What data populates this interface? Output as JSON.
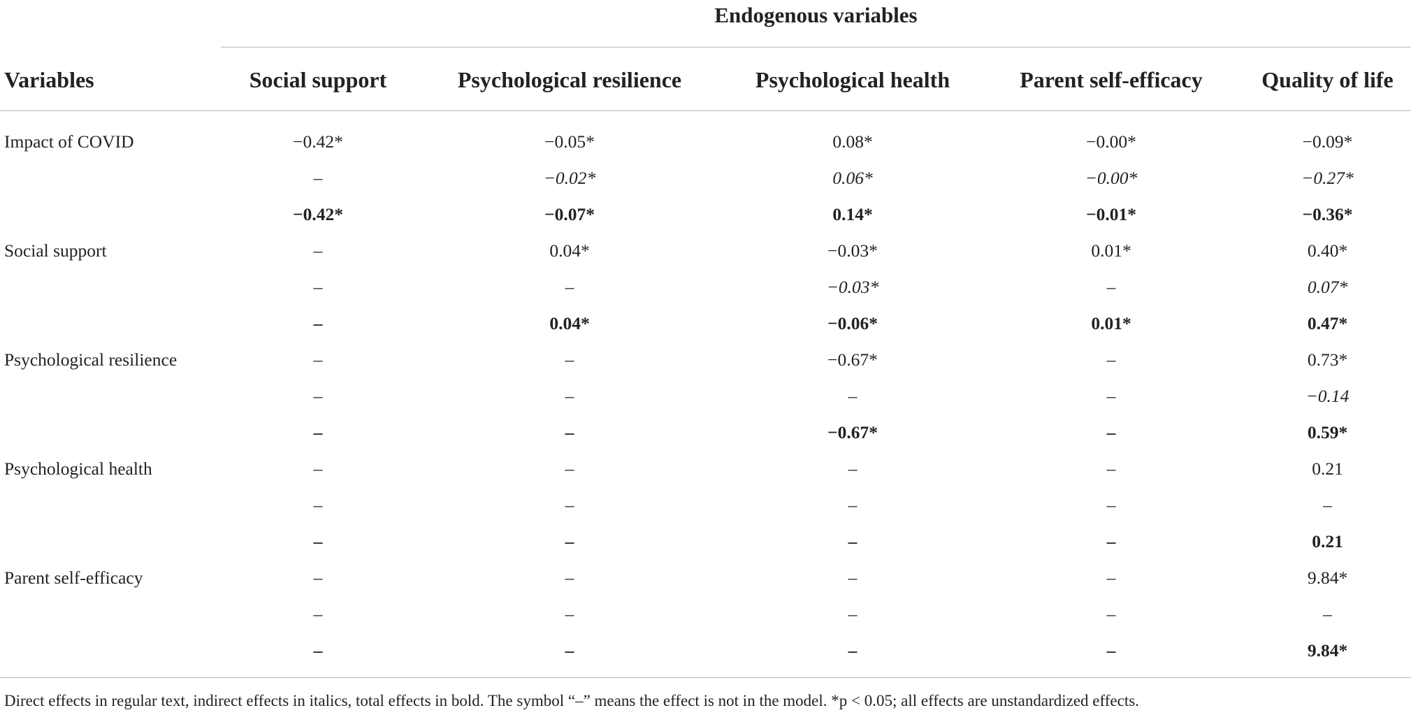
{
  "table": {
    "group_header": "Endogenous variables",
    "variables_header": "Variables",
    "columns": [
      "Social support",
      "Psychological resilience",
      "Psychological health",
      "Parent self-efficacy",
      "Quality of life"
    ],
    "rows": [
      {
        "label": "Impact of COVID",
        "type": "direct",
        "values": [
          "−0.42*",
          "−0.05*",
          "0.08*",
          "−0.00*",
          "−0.09*"
        ]
      },
      {
        "label": "",
        "type": "indirect",
        "values": [
          "–",
          "−0.02*",
          "0.06*",
          "−0.00*",
          "−0.27*"
        ]
      },
      {
        "label": "",
        "type": "total",
        "values": [
          "−0.42*",
          "−0.07*",
          "0.14*",
          "−0.01*",
          "−0.36*"
        ]
      },
      {
        "label": "Social support",
        "type": "direct",
        "values": [
          "–",
          "0.04*",
          "−0.03*",
          "0.01*",
          "0.40*"
        ]
      },
      {
        "label": "",
        "type": "indirect",
        "values": [
          "–",
          "–",
          "−0.03*",
          "–",
          "0.07*"
        ]
      },
      {
        "label": "",
        "type": "total",
        "values": [
          "–",
          "0.04*",
          "−0.06*",
          "0.01*",
          "0.47*"
        ]
      },
      {
        "label": "Psychological resilience",
        "type": "direct",
        "values": [
          "–",
          "–",
          "−0.67*",
          "–",
          "0.73*"
        ]
      },
      {
        "label": "",
        "type": "indirect",
        "values": [
          "–",
          "–",
          "–",
          "–",
          "−0.14"
        ]
      },
      {
        "label": "",
        "type": "total",
        "values": [
          "–",
          "–",
          "−0.67*",
          "–",
          "0.59*"
        ]
      },
      {
        "label": "Psychological health",
        "type": "direct",
        "values": [
          "–",
          "–",
          "–",
          "–",
          "0.21"
        ]
      },
      {
        "label": "",
        "type": "indirect",
        "values": [
          "–",
          "–",
          "–",
          "–",
          "–"
        ]
      },
      {
        "label": "",
        "type": "total",
        "values": [
          "–",
          "–",
          "–",
          "–",
          "0.21"
        ]
      },
      {
        "label": "Parent self-efficacy",
        "type": "direct",
        "values": [
          "–",
          "–",
          "–",
          "–",
          "9.84*"
        ]
      },
      {
        "label": "",
        "type": "indirect",
        "values": [
          "–",
          "–",
          "–",
          "–",
          "–"
        ]
      },
      {
        "label": "",
        "type": "total",
        "values": [
          "–",
          "–",
          "–",
          "–",
          "9.84*"
        ]
      }
    ],
    "footnote": "Direct effects in regular text, indirect effects in italics, total effects in bold. The symbol “–” means the effect is not in the model. *p < 0.05; all effects are unstandardized effects."
  }
}
